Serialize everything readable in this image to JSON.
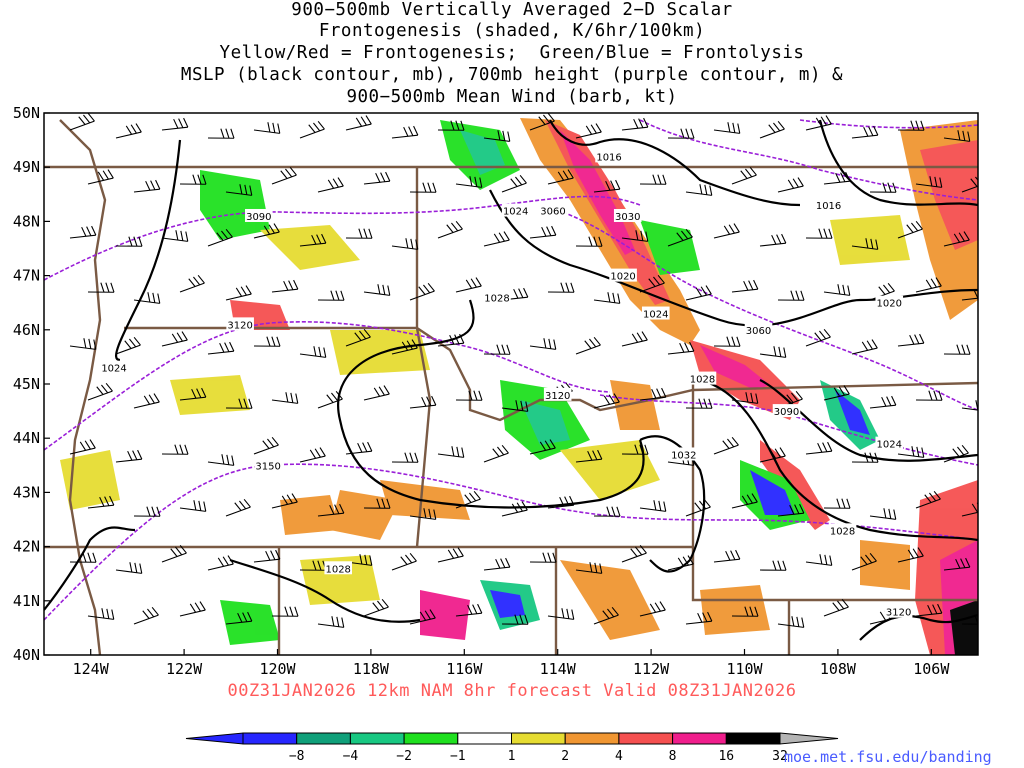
{
  "title_lines": [
    "900−500mb Vertically Averaged 2−D Scalar",
    "Frontogenesis (shaded, K/6hr/100km)",
    "Yellow/Red = Frontogenesis;  Green/Blue = Frontolysis",
    "MSLP (black contour, mb), 700mb height (purple contour, m) &",
    "900−500mb Mean Wind (barb, kt)"
  ],
  "map": {
    "lon_range": [
      -125,
      -105
    ],
    "lat_range": [
      40,
      50
    ],
    "lat_labels": [
      "50N",
      "49N",
      "48N",
      "47N",
      "46N",
      "45N",
      "44N",
      "43N",
      "42N",
      "41N",
      "40N"
    ],
    "lon_labels": [
      "124W",
      "122W",
      "120W",
      "118W",
      "116W",
      "114W",
      "112W",
      "110W",
      "108W",
      "106W"
    ],
    "mslp_labels": [
      {
        "text": "1016",
        "lon": -112.9,
        "lat": 49.2
      },
      {
        "text": "1016",
        "lon": -108.2,
        "lat": 48.3
      },
      {
        "text": "1024",
        "lon": -114.9,
        "lat": 48.2
      },
      {
        "text": "1020",
        "lon": -112.6,
        "lat": 47.0
      },
      {
        "text": "1020",
        "lon": -106.9,
        "lat": 46.5
      },
      {
        "text": "1028",
        "lon": -115.3,
        "lat": 46.6
      },
      {
        "text": "1024",
        "lon": -111.9,
        "lat": 46.3
      },
      {
        "text": "1024",
        "lon": -123.5,
        "lat": 45.3
      },
      {
        "text": "1028",
        "lon": -110.9,
        "lat": 45.1
      },
      {
        "text": "1032",
        "lon": -111.3,
        "lat": 43.7
      },
      {
        "text": "1024",
        "lon": -106.9,
        "lat": 43.9
      },
      {
        "text": "1028",
        "lon": -107.9,
        "lat": 42.3
      },
      {
        "text": "1028",
        "lon": -118.7,
        "lat": 41.6
      }
    ],
    "height_labels": [
      {
        "text": "3060",
        "lon": -114.1,
        "lat": 48.2
      },
      {
        "text": "3030",
        "lon": -112.5,
        "lat": 48.1
      },
      {
        "text": "3090",
        "lon": -120.4,
        "lat": 48.1
      },
      {
        "text": "3120",
        "lon": -120.8,
        "lat": 46.1
      },
      {
        "text": "3060",
        "lon": -109.7,
        "lat": 46.0
      },
      {
        "text": "3120",
        "lon": -114.0,
        "lat": 44.8
      },
      {
        "text": "3090",
        "lon": -109.1,
        "lat": 44.5
      },
      {
        "text": "3150",
        "lon": -120.2,
        "lat": 43.5
      },
      {
        "text": "3120",
        "lon": -106.7,
        "lat": 40.8
      }
    ]
  },
  "colorbar": {
    "labels": [
      "−8",
      "−4",
      "−2",
      "−1",
      "1",
      "2",
      "4",
      "8",
      "16",
      "32"
    ],
    "colors": [
      "#2626ff",
      "#10a07a",
      "#18c882",
      "#1fe01f",
      "#ffffff",
      "#e6dc32",
      "#f09632",
      "#f55050",
      "#f01e8c",
      "#000000"
    ],
    "end_low": "#2626ff",
    "end_high": "#b4b4b4"
  },
  "footer": "00Z31JAN2026 12km NAM 8hr forecast Valid 08Z31JAN2026",
  "credit": "moe.met.fsu.edu/banding"
}
